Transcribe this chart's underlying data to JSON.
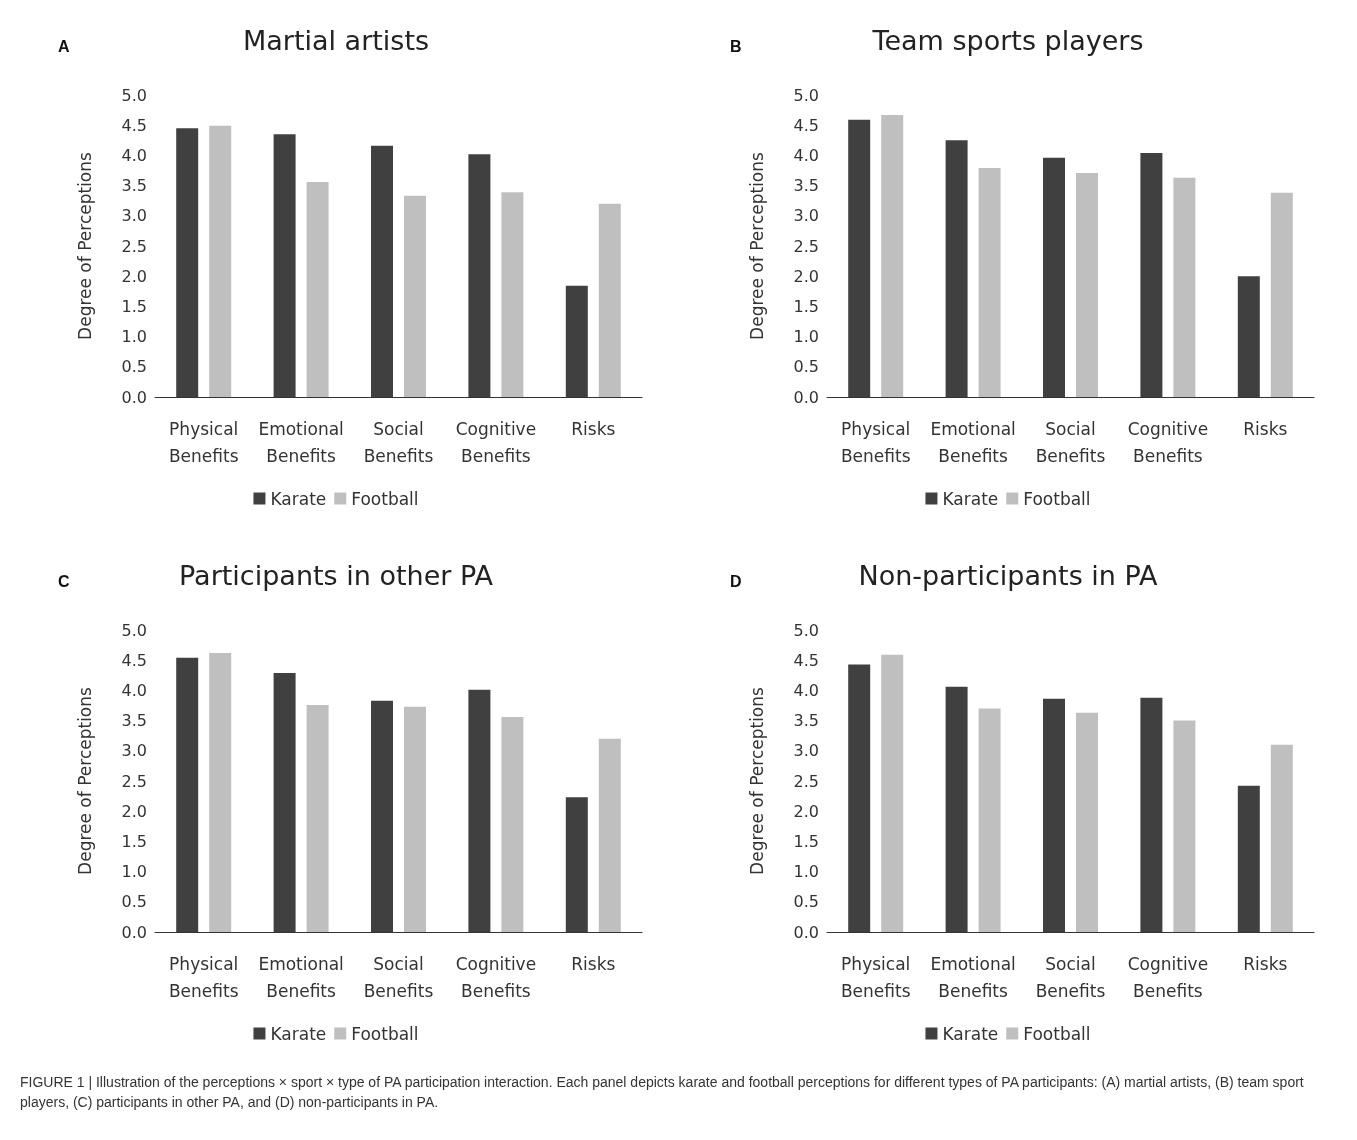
{
  "chart_data": [
    {
      "type": "bar",
      "title": "Martial artists",
      "ylabel": "Degree of Perceptions",
      "annotations": [
        "A"
      ],
      "categories": [
        "Physical Benefits",
        "Emotional Benefits",
        "Social Benefits",
        "Cognitive Benefits",
        "Risks"
      ],
      "series": [
        {
          "name": "Karate",
          "color": "#404040",
          "values": [
            4.45,
            4.35,
            4.16,
            4.02,
            1.84
          ]
        },
        {
          "name": "Football",
          "color": "#bfbfbf",
          "values": [
            4.49,
            3.56,
            3.33,
            3.39,
            3.2
          ]
        }
      ],
      "ylim": [
        0,
        5
      ],
      "yticks": [
        {
          "value": 0,
          "label": "0.0"
        },
        {
          "value": 0.5,
          "label": "0.5"
        },
        {
          "value": 1,
          "label": "1.0"
        },
        {
          "value": 1.5,
          "label": "1.5"
        },
        {
          "value": 2,
          "label": "2.0"
        },
        {
          "value": 2.5,
          "label": "2.5"
        },
        {
          "value": 3,
          "label": "3.0"
        },
        {
          "value": 3.5,
          "label": "3.5"
        },
        {
          "value": 4,
          "label": "4.0"
        },
        {
          "value": 4.5,
          "label": "4.5"
        },
        {
          "value": 5,
          "label": "5.0"
        }
      ],
      "grid": false,
      "legend": "bottom"
    },
    {
      "type": "bar",
      "title": "Team sports players",
      "ylabel": "Degree of Perceptions",
      "annotations": [
        "B"
      ],
      "categories": [
        "Physical Benefits",
        "Emotional Benefits",
        "Social Benefits",
        "Cognitive Benefits",
        "Risks"
      ],
      "series": [
        {
          "name": "Karate",
          "color": "#404040",
          "values": [
            4.59,
            4.25,
            3.96,
            4.04,
            2.0
          ]
        },
        {
          "name": "Football",
          "color": "#bfbfbf",
          "values": [
            4.67,
            3.79,
            3.71,
            3.63,
            3.38
          ]
        }
      ],
      "ylim": [
        0,
        5
      ],
      "yticks": [
        {
          "value": 0,
          "label": "0.0"
        },
        {
          "value": 0.5,
          "label": "0.5"
        },
        {
          "value": 1,
          "label": "1.0"
        },
        {
          "value": 1.5,
          "label": "1.5"
        },
        {
          "value": 2,
          "label": "2.0"
        },
        {
          "value": 2.5,
          "label": "2.5"
        },
        {
          "value": 3,
          "label": "3.0"
        },
        {
          "value": 3.5,
          "label": "3.5"
        },
        {
          "value": 4,
          "label": "4.0"
        },
        {
          "value": 4.5,
          "label": "4.5"
        },
        {
          "value": 5,
          "label": "5.0"
        }
      ],
      "grid": false,
      "legend": "bottom"
    },
    {
      "type": "bar",
      "title": "Participants in other PA",
      "ylabel": "Degree of Perceptions",
      "annotations": [
        "C"
      ],
      "categories": [
        "Physical Benefits",
        "Emotional Benefits",
        "Social Benefits",
        "Cognitive Benefits",
        "Risks"
      ],
      "series": [
        {
          "name": "Karate",
          "color": "#404040",
          "values": [
            4.54,
            4.29,
            3.83,
            4.01,
            2.23
          ]
        },
        {
          "name": "Football",
          "color": "#bfbfbf",
          "values": [
            4.62,
            3.76,
            3.73,
            3.56,
            3.2
          ]
        }
      ],
      "ylim": [
        0,
        5
      ],
      "yticks": [
        {
          "value": 0,
          "label": "0.0"
        },
        {
          "value": 0.5,
          "label": "0.5"
        },
        {
          "value": 1,
          "label": "1.0"
        },
        {
          "value": 1.5,
          "label": "1.5"
        },
        {
          "value": 2,
          "label": "2.0"
        },
        {
          "value": 2.5,
          "label": "2.5"
        },
        {
          "value": 3,
          "label": "3.0"
        },
        {
          "value": 3.5,
          "label": "3.5"
        },
        {
          "value": 4,
          "label": "4.0"
        },
        {
          "value": 4.5,
          "label": "4.5"
        },
        {
          "value": 5,
          "label": "5.0"
        }
      ],
      "grid": false,
      "legend": "bottom"
    },
    {
      "type": "bar",
      "title": "Non-participants in PA",
      "ylabel": "Degree of Perceptions",
      "annotations": [
        "D",
        "FIGURE 1 | Illustration of the perceptions × sport × type of PA participation interaction. Each panel depicts karate and football perceptions for different types of PA participants: (A) martial artists, (B) team sport players, (C) participants in other PA, and (D) non-participants in PA."
      ],
      "categories": [
        "Physical Benefits",
        "Emotional Benefits",
        "Social Benefits",
        "Cognitive Benefits",
        "Risks"
      ],
      "series": [
        {
          "name": "Karate",
          "color": "#404040",
          "values": [
            4.43,
            4.06,
            3.86,
            3.88,
            2.42
          ]
        },
        {
          "name": "Football",
          "color": "#bfbfbf",
          "values": [
            4.59,
            3.7,
            3.63,
            3.5,
            3.1
          ]
        }
      ],
      "ylim": [
        0,
        5
      ],
      "yticks": [
        {
          "value": 0,
          "label": "0.0"
        },
        {
          "value": 0.5,
          "label": "0.5"
        },
        {
          "value": 1,
          "label": "1.0"
        },
        {
          "value": 1.5,
          "label": "1.5"
        },
        {
          "value": 2,
          "label": "2.0"
        },
        {
          "value": 2.5,
          "label": "2.5"
        },
        {
          "value": 3,
          "label": "3.0"
        },
        {
          "value": 3.5,
          "label": "3.5"
        },
        {
          "value": 4,
          "label": "4.0"
        },
        {
          "value": 4.5,
          "label": "4.5"
        },
        {
          "value": 5,
          "label": "5.0"
        }
      ],
      "grid": false,
      "legend": "bottom"
    }
  ]
}
